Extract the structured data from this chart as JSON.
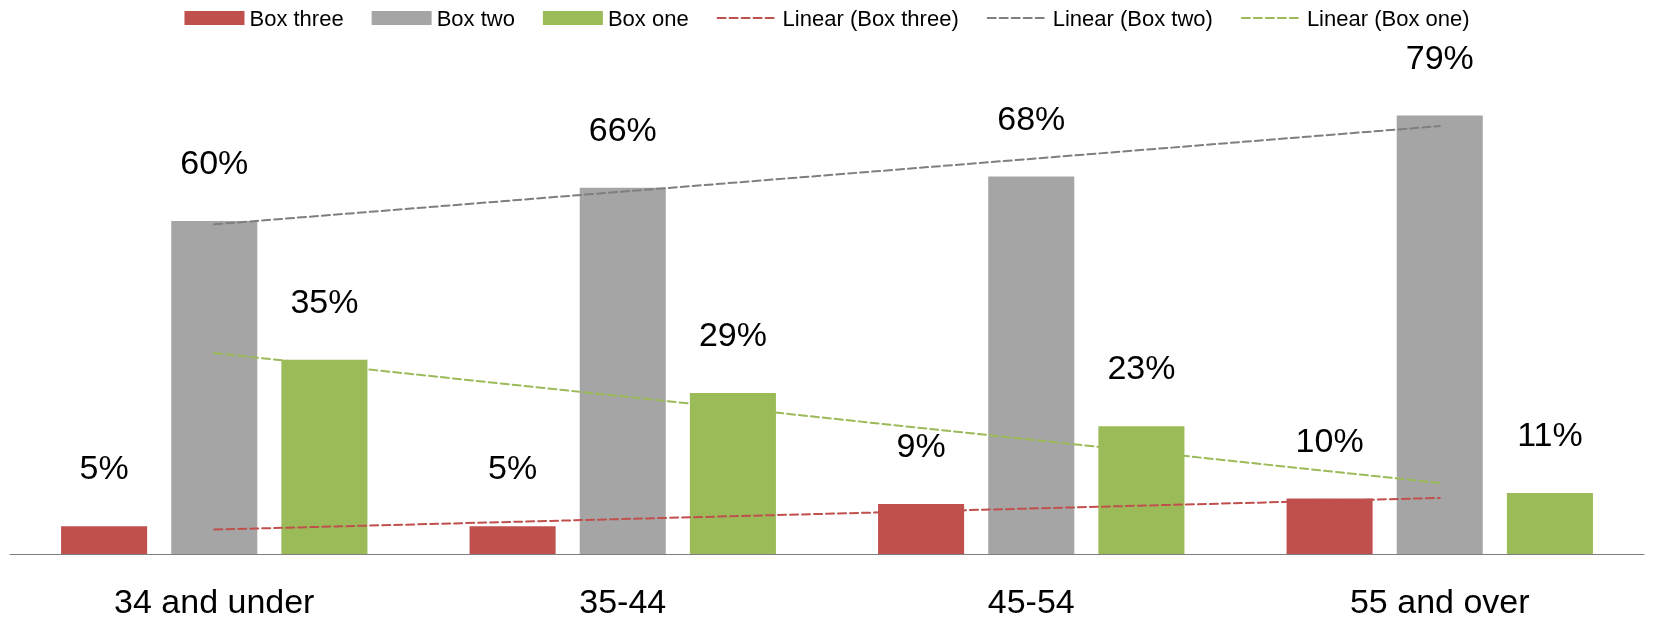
{
  "chart_data": {
    "type": "bar",
    "categories": [
      "34 and under",
      "35-44",
      "45-54",
      "55 and over"
    ],
    "series": [
      {
        "name": "Box three",
        "color": "#c0504d",
        "values": [
          5,
          5,
          9,
          10
        ],
        "value_labels": [
          "5%",
          "5%",
          "9%",
          "10%"
        ]
      },
      {
        "name": "Box two",
        "color": "#a5a5a5",
        "values": [
          60,
          66,
          68,
          79
        ],
        "value_labels": [
          "60%",
          "66%",
          "68%",
          "79%"
        ]
      },
      {
        "name": "Box one",
        "color": "#9bbb59",
        "values": [
          35,
          29,
          23,
          11
        ],
        "value_labels": [
          "35%",
          "29%",
          "23%",
          "11%"
        ]
      },
      {
        "name": "Linear (Box three)",
        "type": "line",
        "color": "#c0504d",
        "x": [
          "34 and under",
          "55 and over"
        ],
        "values": [
          4.4,
          10.1
        ],
        "line_style": "dashed",
        "marker": "none"
      },
      {
        "name": "Linear (Box two)",
        "type": "line",
        "color": "#7f7f7f",
        "x": [
          "34 and under",
          "55 and over"
        ],
        "values": [
          59.4,
          77.1
        ],
        "line_style": "dashed",
        "marker": "none"
      },
      {
        "name": "Linear (Box one)",
        "type": "line",
        "color": "#9bbb59",
        "x": [
          "34 and under",
          "55 and over"
        ],
        "values": [
          36.2,
          12.8
        ],
        "line_style": "dashed",
        "marker": "none"
      }
    ],
    "legend": "top",
    "grid": false
  }
}
